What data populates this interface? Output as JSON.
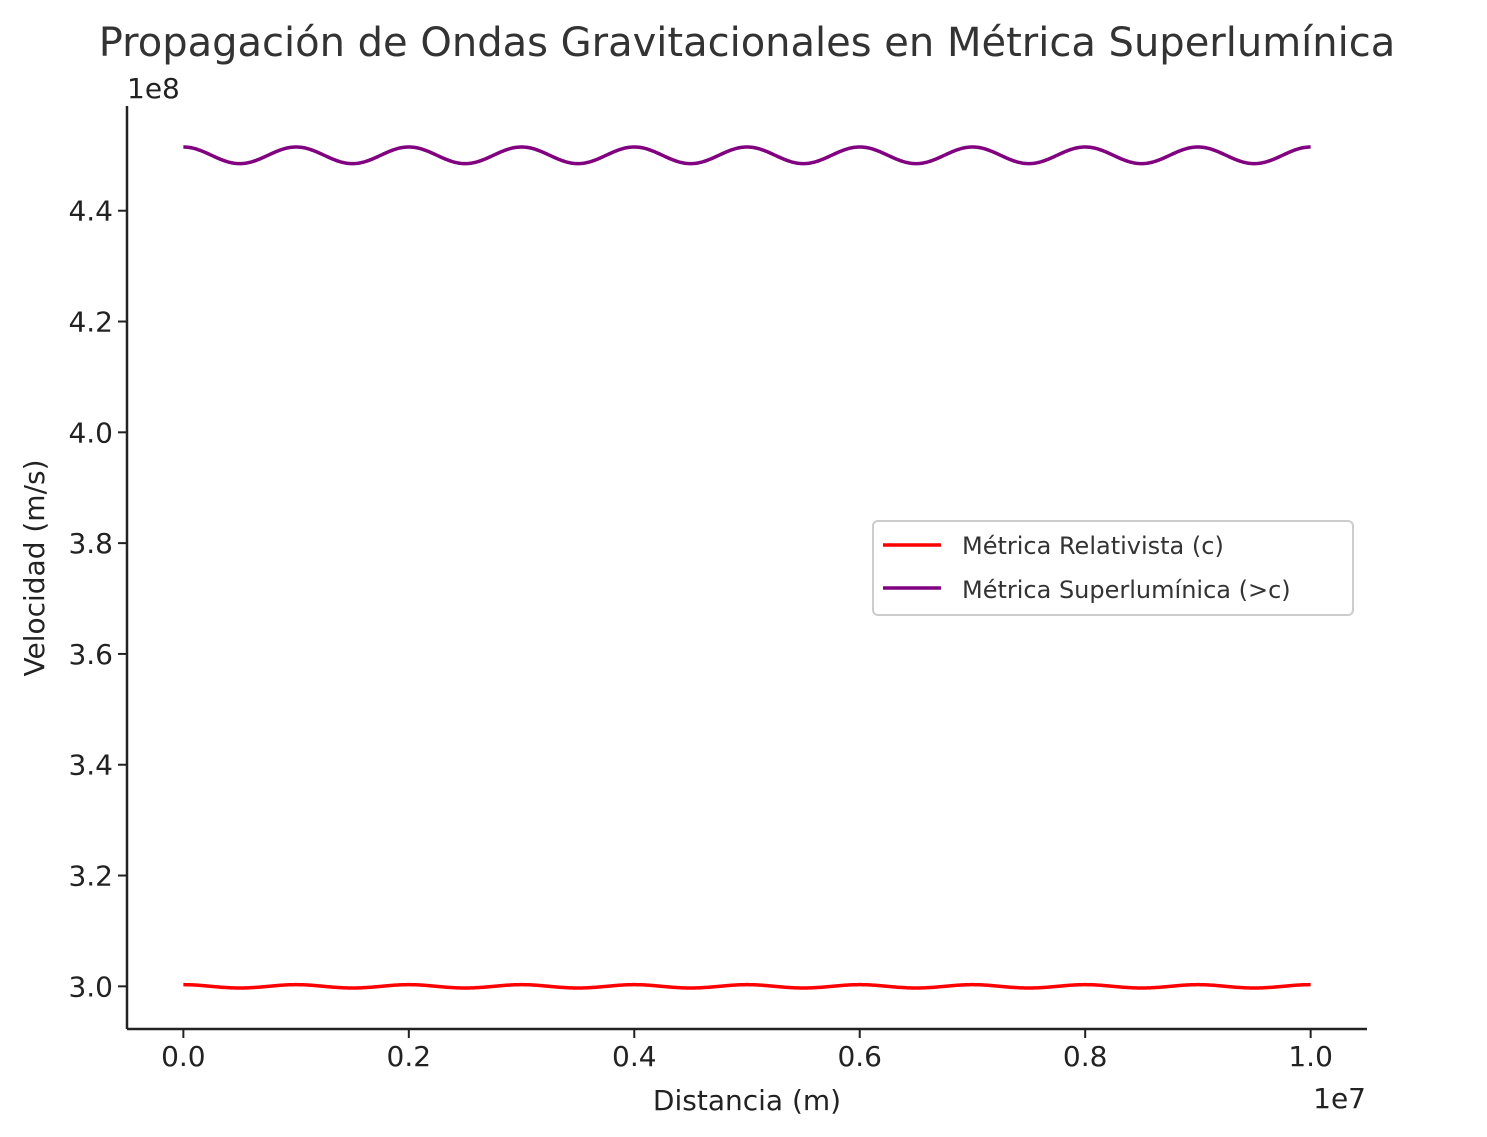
{
  "chart_data": {
    "type": "line",
    "title": "Propagación de Ondas Gravitacionales en Métrica Superlumínica",
    "xlabel": "Distancia (m)",
    "ylabel": "Velocidad (m/s)",
    "x_offset_label": "1e7",
    "y_offset_label": "1e8",
    "x_range": [
      0,
      10000000
    ],
    "xlim": [
      -500000,
      10500000
    ],
    "ylim": [
      292300000,
      458900000
    ],
    "x_ticks": [
      0,
      2000000,
      4000000,
      6000000,
      8000000,
      10000000
    ],
    "x_tick_labels": [
      "0.0",
      "0.2",
      "0.4",
      "0.6",
      "0.8",
      "1.0"
    ],
    "y_ticks": [
      300000000,
      320000000,
      340000000,
      360000000,
      380000000,
      400000000,
      420000000,
      440000000
    ],
    "y_tick_labels": [
      "3.0",
      "3.2",
      "3.4",
      "3.6",
      "3.8",
      "4.0",
      "4.2",
      "4.4"
    ],
    "grid": false,
    "legend_position": "center-right",
    "series": [
      {
        "name": "Métrica Relativista (c)",
        "color": "#ff0000",
        "function": "cosine",
        "baseline": 300000000,
        "amplitude": 300000,
        "period": 1000000
      },
      {
        "name": "Métrica Superlumínica (>c)",
        "color": "#800080",
        "function": "cosine",
        "baseline": 450000000,
        "amplitude": 1500000,
        "period": 1000000
      }
    ]
  }
}
